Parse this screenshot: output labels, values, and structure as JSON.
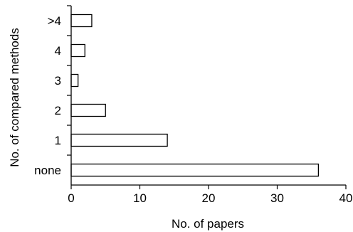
{
  "chart_data": {
    "type": "bar",
    "orientation": "horizontal",
    "categories": [
      "none",
      "1",
      "2",
      "3",
      "4",
      ">4"
    ],
    "values": [
      36,
      14,
      5,
      1,
      2,
      3
    ],
    "xlabel": "No. of papers",
    "ylabel": "No. of compared methods",
    "xlim": [
      0,
      40
    ],
    "xticks": [
      "0",
      "10",
      "20",
      "30",
      "40"
    ],
    "grid": false,
    "bar_fill": "#ffffff",
    "bar_stroke": "#000000"
  }
}
